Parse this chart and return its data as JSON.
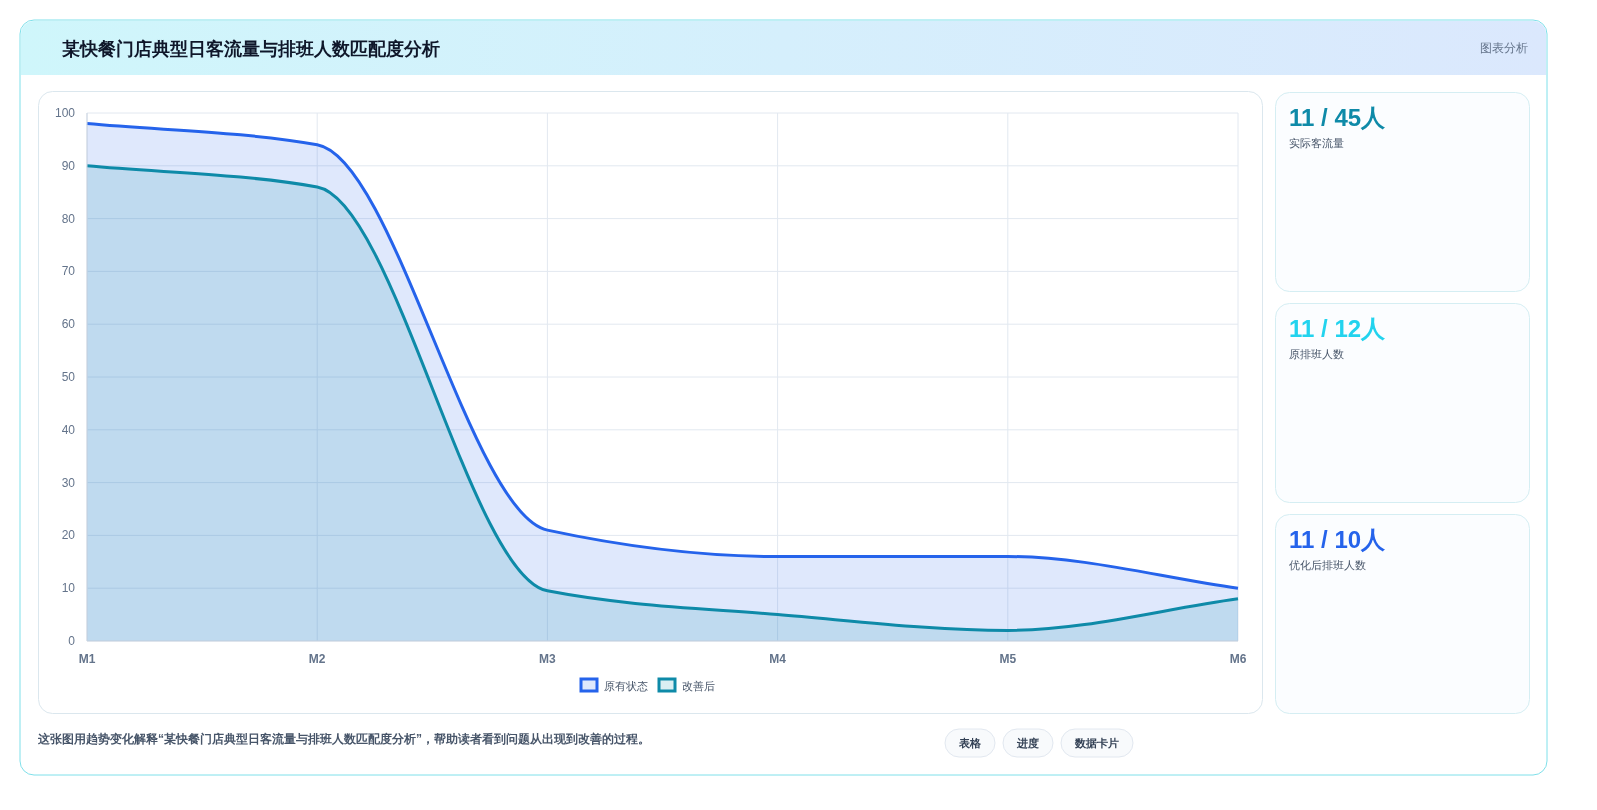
{
  "chart_data": [
    {
      "type": "area",
      "title": "某快餐门店典型日客流量与排班人数匹配度分析",
      "categories": [
        "M1",
        "M2",
        "M3",
        "M4",
        "M5",
        "M6"
      ],
      "series": [
        {
          "name": "原有状态",
          "color": "#2563eb",
          "values": [
            98,
            94,
            21,
            16,
            16,
            10
          ]
        },
        {
          "name": "改善后",
          "color": "#0e8aa8",
          "values": [
            90,
            86,
            9.5,
            5,
            2,
            8
          ]
        }
      ],
      "ylim": [
        0,
        100
      ],
      "yticks": [
        0,
        10,
        20,
        30,
        40,
        50,
        60,
        70,
        80,
        90,
        100
      ],
      "grid": true,
      "legend": "bottom",
      "marker": "none",
      "line_style": "solid",
      "annotations": [
        "这张图用趋势变化解释“某快餐门店典型日客流量与排班人数匹配度分析”，帮助读者看到问题从出现到改善的过程。",
        "表格",
        "进度",
        "数据卡片"
      ]
    },
    {
      "type": "other",
      "annotations": [
        "图表分析",
        "11 / 45人",
        "实际客流量",
        "11 / 12人",
        "原排班人数",
        "11 / 10人",
        "优化后排班人数"
      ],
      "colors": [
        "#0e8aa8",
        "#22d3ee",
        "#2563eb"
      ]
    }
  ]
}
